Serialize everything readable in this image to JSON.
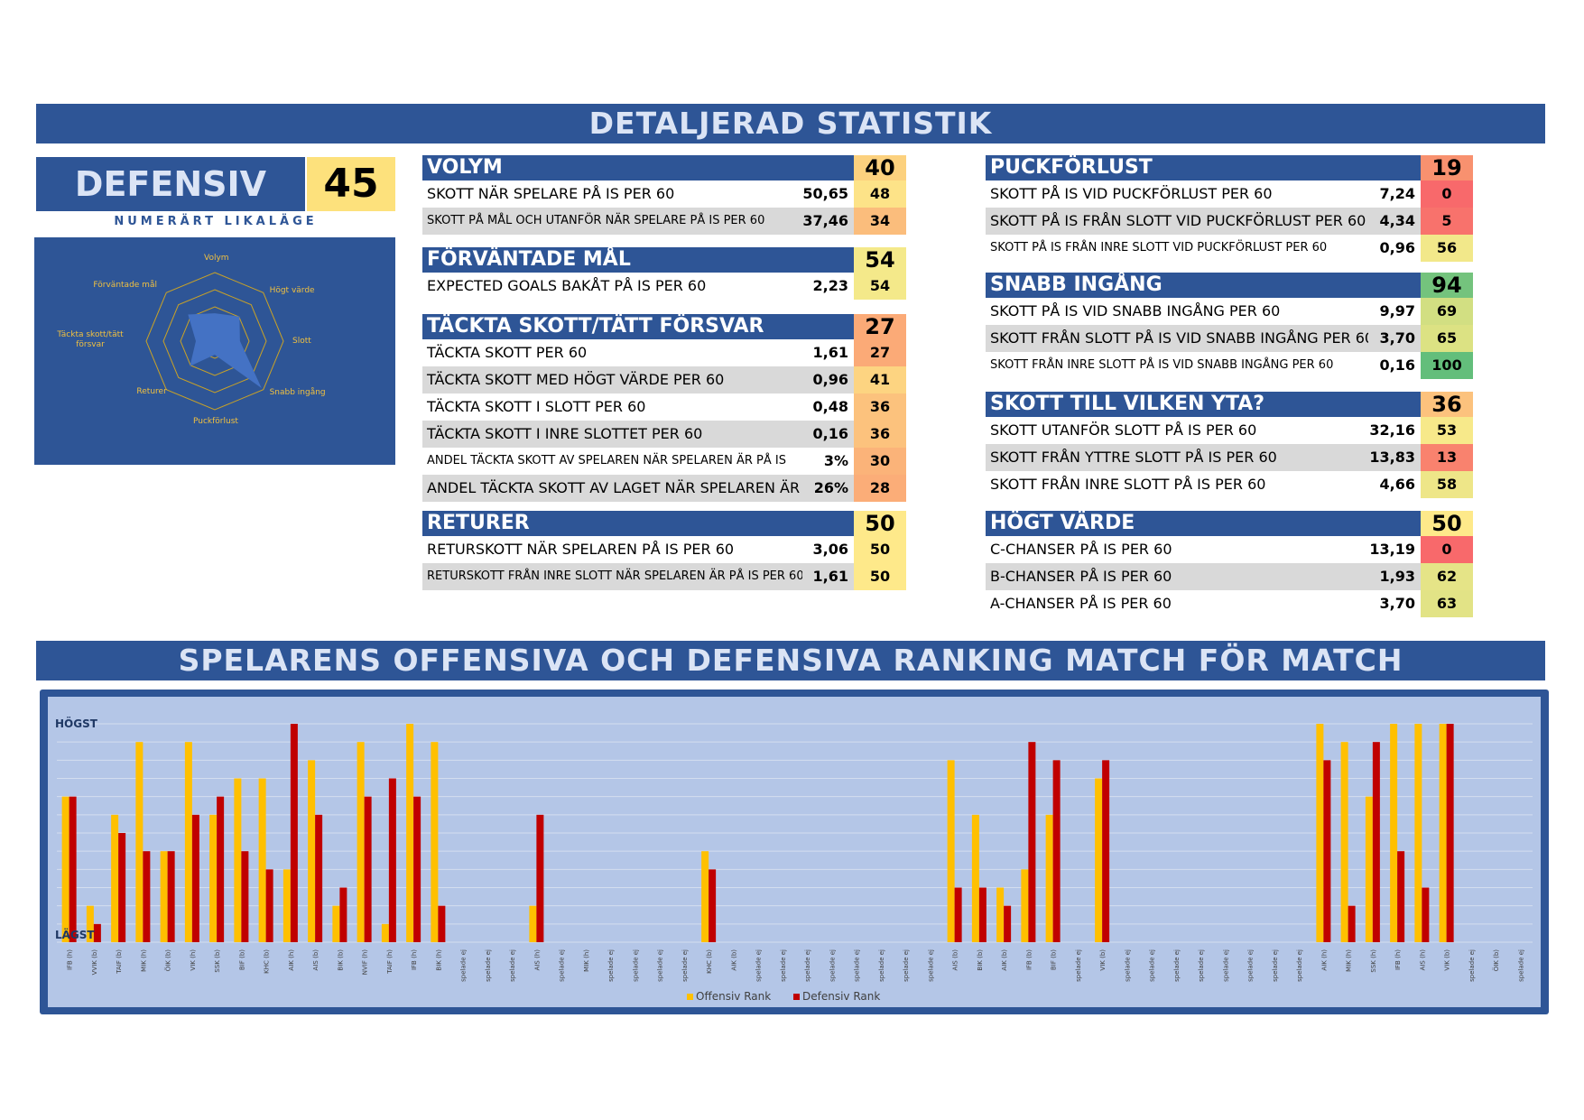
{
  "title": "DETALJERAD STATISTIK",
  "defensiv": {
    "label": "DEFENSIV",
    "score": "45",
    "strength": "NUMERÄRT LIKALÄGE"
  },
  "radar": {
    "labels": [
      "Volym",
      "Högt värde",
      "Slott",
      "Snabb ingång",
      "Puckförlust",
      "Returer",
      "Täckta skott/tätt försvar",
      "Förväntade mål"
    ],
    "values": [
      40,
      50,
      36,
      94,
      19,
      50,
      27,
      54
    ],
    "colors": {
      "fill": "#4472c4",
      "grid": "#c9a227",
      "background": "#2e5596"
    }
  },
  "blocks": [
    {
      "title": "VOLYM",
      "score": "40",
      "score_color": "#fcd17e",
      "rows": [
        {
          "label": "SKOTT NÄR SPELARE PÅ IS PER 60",
          "value": "50,65",
          "rank": "48",
          "rank_color": "#fde388",
          "small": false
        },
        {
          "label": "SKOTT PÅ MÅL OCH UTANFÖR NÄR SPELARE PÅ IS PER 60",
          "value": "37,46",
          "rank": "34",
          "rank_color": "#fbbd7c",
          "small": true
        }
      ]
    },
    {
      "title": "FÖRVÄNTADE MÅL",
      "score": "54",
      "score_color": "#f4e98a",
      "rows": [
        {
          "label": "EXPECTED GOALS BAKÅT PÅ IS PER 60",
          "value": "2,23",
          "rank": "54",
          "rank_color": "#f4e98a",
          "small": false
        }
      ]
    },
    {
      "title": "TÄCKTA SKOTT/TÄTT FÖRSVAR",
      "score": "27",
      "score_color": "#fbaa77",
      "rows": [
        {
          "label": "TÄCKTA SKOTT PER 60",
          "value": "1,61",
          "rank": "27",
          "rank_color": "#fbaa77",
          "small": false
        },
        {
          "label": "TÄCKTA SKOTT MED HÖGT VÄRDE PER 60",
          "value": "0,96",
          "rank": "41",
          "rank_color": "#fdd481",
          "small": false
        },
        {
          "label": "TÄCKTA SKOTT I SLOTT PER 60",
          "value": "0,48",
          "rank": "36",
          "rank_color": "#fcc27d",
          "small": false
        },
        {
          "label": "TÄCKTA SKOTT I INRE SLOTTET PER 60",
          "value": "0,16",
          "rank": "36",
          "rank_color": "#fcc27d",
          "small": false
        },
        {
          "label": "ANDEL TÄCKTA SKOTT AV SPELAREN NÄR SPELAREN ÄR PÅ IS",
          "value": "3%",
          "rank": "30",
          "rank_color": "#fbb379",
          "small": true
        },
        {
          "label": "ANDEL TÄCKTA SKOTT AV LAGET NÄR SPELAREN ÄR PÅ IS",
          "value": "26%",
          "rank": "28",
          "rank_color": "#fbad78",
          "small": false
        }
      ]
    },
    {
      "title": "RETURER",
      "score": "50",
      "score_color": "#fee98a",
      "rows": [
        {
          "label": "RETURSKOTT NÄR SPELAREN PÅ IS PER 60",
          "value": "3,06",
          "rank": "50",
          "rank_color": "#fee98a",
          "small": false
        },
        {
          "label": "RETURSKOTT FRÅN INRE SLOTT NÄR SPELAREN ÄR PÅ IS PER 60",
          "value": "1,61",
          "rank": "50",
          "rank_color": "#fee98a",
          "small": true
        }
      ]
    },
    {
      "title": "PUCKFÖRLUST",
      "score": "19",
      "score_color": "#f8916f",
      "rows": [
        {
          "label": "SKOTT PÅ IS VID PUCKFÖRLUST PER 60",
          "value": "7,24",
          "rank": "0",
          "rank_color": "#f8696b",
          "small": false
        },
        {
          "label": "SKOTT PÅ IS FRÅN SLOTT VID PUCKFÖRLUST PER 60",
          "value": "4,34",
          "rank": "5",
          "rank_color": "#f8726c",
          "small": false
        },
        {
          "label": "SKOTT PÅ IS FRÅN INRE SLOTT VID PUCKFÖRLUST PER 60",
          "value": "0,96",
          "rank": "56",
          "rank_color": "#f2e88a",
          "small": true
        }
      ]
    },
    {
      "title": "SNABB INGÅNG",
      "score": "94",
      "score_color": "#74c37d",
      "rows": [
        {
          "label": "SKOTT PÅ IS VID SNABB INGÅNG PER 60",
          "value": "9,97",
          "rank": "69",
          "rank_color": "#d2df82",
          "small": false
        },
        {
          "label": "SKOTT FRÅN SLOTT PÅ IS VID SNABB INGÅNG PER 60",
          "value": "3,70",
          "rank": "65",
          "rank_color": "#dce283",
          "small": false
        },
        {
          "label": "SKOTT FRÅN INRE SLOTT PÅ IS VID SNABB INGÅNG PER 60",
          "value": "0,16",
          "rank": "100",
          "rank_color": "#63be7b",
          "small": true
        }
      ]
    },
    {
      "title": "SKOTT TILL VILKEN YTA?",
      "score": "36",
      "score_color": "#fcc27d",
      "rows": [
        {
          "label": "SKOTT UTANFÖR SLOTT PÅ IS PER 60",
          "value": "32,16",
          "rank": "53",
          "rank_color": "#f7e98a",
          "small": false
        },
        {
          "label": "SKOTT FRÅN YTTRE SLOTT PÅ IS PER 60",
          "value": "13,83",
          "rank": "13",
          "rank_color": "#f9826e",
          "small": false
        },
        {
          "label": "SKOTT FRÅN INRE SLOTT PÅ IS PER 60",
          "value": "4,66",
          "rank": "58",
          "rank_color": "#eee688",
          "small": false
        }
      ]
    },
    {
      "title": "HÖGT VÄRDE",
      "score": "50",
      "score_color": "#fee98a",
      "rows": [
        {
          "label": "C-CHANSER PÅ IS PER 60",
          "value": "13,19",
          "rank": "0",
          "rank_color": "#f8696b",
          "small": false
        },
        {
          "label": "B-CHANSER PÅ IS PER 60",
          "value": "1,93",
          "rank": "62",
          "rank_color": "#e5e487",
          "small": false
        },
        {
          "label": "A-CHANSER PÅ IS PER 60",
          "value": "3,70",
          "rank": "63",
          "rank_color": "#e2e386",
          "small": false
        }
      ]
    }
  ],
  "ranking_title": "SPELARENS OFFENSIVA OCH DEFENSIVA RANKING MATCH FÖR MATCH",
  "chart_data": {
    "type": "bar",
    "y_top_label": "HÖGST",
    "y_bottom_label": "LÄGST",
    "ylim": [
      0,
      12
    ],
    "grid": true,
    "legend_position": "bottom",
    "categories": [
      "IFB (h)",
      "VVIK (b)",
      "TAIF (b)",
      "MIK (h)",
      "ÖIK (b)",
      "VIK (h)",
      "SSK (b)",
      "BIF (b)",
      "KHC (b)",
      "AIK (h)",
      "AIS (b)",
      "BIK (b)",
      "NVIF (h)",
      "TAIF (h)",
      "IFB (h)",
      "BIK (h)",
      "spelade ej",
      "spelade ej",
      "spelade ej",
      "AIS (h)",
      "spelade ej",
      "MIK (h)",
      "spelade ej",
      "spelade ej",
      "spelade ej",
      "spelade ej",
      "KHC (b)",
      "AIK (b)",
      "spelade ej",
      "spelade ej",
      "spelade ej",
      "spelade ej",
      "spelade ej",
      "spelade ej",
      "spelade ej",
      "spelade ej",
      "AIS (b)",
      "BIK (b)",
      "AIK (b)",
      "IFB (b)",
      "BIF (b)",
      "spelade ej",
      "VIK (b)",
      "spelade ej",
      "spelade ej",
      "spelade ej",
      "spelade ej",
      "spelade ej",
      "spelade ej",
      "spelade ej",
      "spelade ej",
      "AIK (h)",
      "MIK (h)",
      "SSK (h)",
      "IFB (h)",
      "AIS (h)",
      "VIK (b)",
      "spelade ej",
      "ÖIK (b)",
      "spelade ej"
    ],
    "series": [
      {
        "name": "Offensiv Rank",
        "color": "#ffc000",
        "values": [
          8,
          2,
          7,
          11,
          5,
          11,
          7,
          9,
          9,
          4,
          10,
          2,
          11,
          1,
          12,
          11,
          0,
          0,
          0,
          2,
          0,
          0,
          0,
          0,
          0,
          0,
          5,
          0,
          0,
          0,
          0,
          0,
          0,
          0,
          0,
          0,
          10,
          7,
          3,
          4,
          7,
          0,
          9,
          0,
          0,
          0,
          0,
          0,
          0,
          0,
          0,
          12,
          11,
          8,
          12,
          12,
          12,
          0,
          0,
          0
        ]
      },
      {
        "name": "Defensiv Rank",
        "color": "#c00000",
        "values": [
          8,
          1,
          6,
          5,
          5,
          7,
          8,
          5,
          4,
          12,
          7,
          3,
          8,
          9,
          8,
          2,
          0,
          0,
          0,
          7,
          0,
          0,
          0,
          0,
          0,
          0,
          4,
          0,
          0,
          0,
          0,
          0,
          0,
          0,
          0,
          0,
          3,
          3,
          2,
          11,
          10,
          0,
          10,
          0,
          0,
          0,
          0,
          0,
          0,
          0,
          0,
          10,
          2,
          11,
          5,
          3,
          12,
          0,
          0,
          0
        ]
      }
    ]
  }
}
